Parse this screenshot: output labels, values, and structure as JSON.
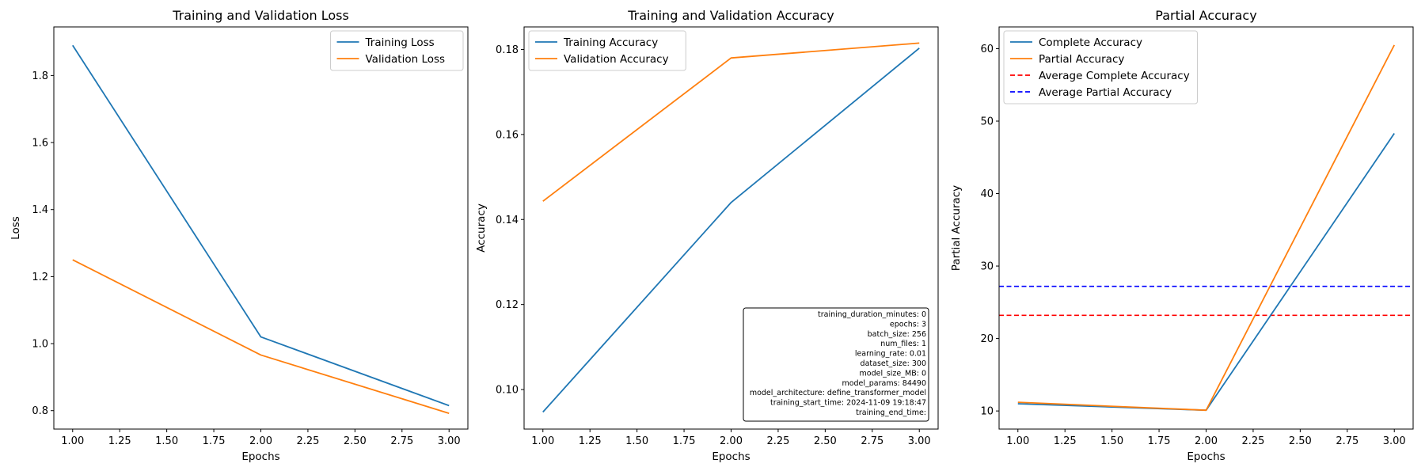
{
  "chart_data": [
    {
      "type": "line",
      "title": "Training and Validation Loss",
      "xlabel": "Epochs",
      "ylabel": "Loss",
      "x": [
        1,
        2,
        3
      ],
      "xlim": [
        0.9,
        3.1
      ],
      "ylim": [
        0.745,
        1.945
      ],
      "xticks": [
        1.0,
        1.25,
        1.5,
        1.75,
        2.0,
        2.25,
        2.5,
        2.75,
        3.0
      ],
      "yticks": [
        0.8,
        1.0,
        1.2,
        1.4,
        1.6,
        1.8
      ],
      "grid": false,
      "legend": "upper right",
      "series": [
        {
          "name": "Training Loss",
          "values": [
            1.89,
            1.02,
            0.815
          ],
          "color": "#1f77b4",
          "dash": "solid"
        },
        {
          "name": "Validation Loss",
          "values": [
            1.25,
            0.966,
            0.792
          ],
          "color": "#ff7f0e",
          "dash": "solid"
        }
      ]
    },
    {
      "type": "line",
      "title": "Training and Validation Accuracy",
      "xlabel": "Epochs",
      "ylabel": "Accuracy",
      "x": [
        1,
        2,
        3
      ],
      "xlim": [
        0.9,
        3.1
      ],
      "ylim": [
        0.0907,
        0.1853
      ],
      "xticks": [
        1.0,
        1.25,
        1.5,
        1.75,
        2.0,
        2.25,
        2.5,
        2.75,
        3.0
      ],
      "yticks": [
        0.1,
        0.12,
        0.14,
        0.16,
        0.18
      ],
      "grid": false,
      "legend": "upper left",
      "series": [
        {
          "name": "Training Accuracy",
          "values": [
            0.0947,
            0.144,
            0.1803
          ],
          "color": "#1f77b4",
          "dash": "solid"
        },
        {
          "name": "Validation Accuracy",
          "values": [
            0.1443,
            0.178,
            0.1815
          ],
          "color": "#ff7f0e",
          "dash": "solid"
        }
      ],
      "annotation_box": {
        "placement": "lower right",
        "lines": [
          "training_duration_minutes: 0",
          "epochs: 3",
          "batch_size: 256",
          "num_files: 1",
          "learning_rate: 0.01",
          "dataset_size: 300",
          "model_size_MB: 0",
          "model_params: 84490",
          "model_architecture: define_transformer_model",
          "training_start_time: 2024-11-09 19:18:47",
          "training_end_time:"
        ]
      }
    },
    {
      "type": "line",
      "title": "Partial Accuracy",
      "xlabel": "Epochs",
      "ylabel": "Partial Accuracy",
      "x": [
        1,
        2,
        3
      ],
      "xlim": [
        0.9,
        3.1
      ],
      "ylim": [
        7.5,
        63.0
      ],
      "xticks": [
        1.0,
        1.25,
        1.5,
        1.75,
        2.0,
        2.25,
        2.5,
        2.75,
        3.0
      ],
      "yticks": [
        10,
        20,
        30,
        40,
        50,
        60
      ],
      "grid": false,
      "legend": "upper left",
      "series": [
        {
          "name": "Complete Accuracy",
          "values": [
            11.0,
            10.1,
            48.3
          ],
          "color": "#1f77b4",
          "dash": "solid"
        },
        {
          "name": "Partial Accuracy",
          "values": [
            11.2,
            10.1,
            60.5
          ],
          "color": "#ff7f0e",
          "dash": "solid"
        }
      ],
      "hlines": [
        {
          "name": "Average Complete Accuracy",
          "value": 23.2,
          "color": "#ff0000",
          "dash": "dashed"
        },
        {
          "name": "Average Partial Accuracy",
          "value": 27.2,
          "color": "#0000ff",
          "dash": "dashed"
        }
      ]
    }
  ]
}
